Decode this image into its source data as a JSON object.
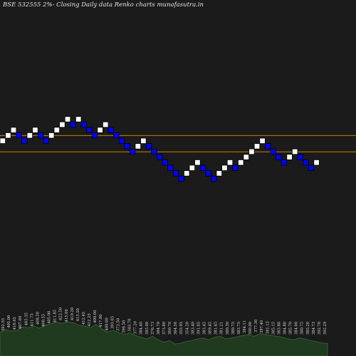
{
  "title": "BSE 532555 2%-  Closing Daily data  Renko  charts munafasutra.in",
  "colors": {
    "background": "#1b1b1b",
    "up_brick": "#ffffff",
    "down_brick": "#0000ff",
    "brick_border": "#000000",
    "hline": "#c98000",
    "volume_fill": "#1f3a1f",
    "volume_stroke": "#3b6a3b",
    "label": "#d8d8d8"
  },
  "chart_data": {
    "type": "renko",
    "box_size_percent": 2,
    "brick_levels": [
      0,
      1,
      2,
      1,
      0,
      1,
      2,
      1,
      0,
      1,
      2,
      3,
      4,
      3,
      4,
      3,
      2,
      1,
      2,
      3,
      2,
      1,
      0,
      -1,
      -2,
      -1,
      0,
      -1,
      -2,
      -3,
      -4,
      -5,
      -6,
      -7,
      -6,
      -5,
      -4,
      -5,
      -6,
      -7,
      -6,
      -5,
      -4,
      -5,
      -4,
      -3,
      -2,
      -1,
      0,
      -1,
      -2,
      -3,
      -4,
      -3,
      -2,
      -3,
      -4,
      -5,
      -4
    ],
    "brick_directions": [
      "up",
      "up",
      "up",
      "down",
      "down",
      "up",
      "up",
      "down",
      "down",
      "up",
      "up",
      "up",
      "up",
      "down",
      "up",
      "down",
      "down",
      "down",
      "up",
      "up",
      "down",
      "down",
      "down",
      "down",
      "down",
      "up",
      "up",
      "down",
      "down",
      "down",
      "down",
      "down",
      "down",
      "down",
      "up",
      "up",
      "up",
      "down",
      "down",
      "down",
      "up",
      "up",
      "up",
      "down",
      "up",
      "up",
      "up",
      "up",
      "up",
      "down",
      "down",
      "down",
      "down",
      "up",
      "up",
      "down",
      "down",
      "down",
      "up"
    ],
    "horizontal_levels": [
      1,
      -2
    ],
    "price_labels": [
      "392.55",
      "405.00",
      "410.65",
      "407.60",
      "403.35",
      "411.75",
      "408.50",
      "400.55",
      "405.00",
      "411.85",
      "422.50",
      "415.00",
      "419.20",
      "413.50",
      "412.45",
      "412.25",
      "409.00",
      "417.80",
      "400.00",
      "393.05",
      "372.50",
      "396.50",
      "383.70",
      "377.20",
      "384.40",
      "393.00",
      "376.73",
      "384.70",
      "373.80",
      "360.70",
      "364.50",
      "355.95",
      "354.20",
      "383.40",
      "391.05",
      "383.45",
      "369.45",
      "381.45",
      "381.21",
      "380.30",
      "380.75",
      "383.75",
      "384.11",
      "390.00",
      "377.30",
      "397.40",
      "381.15",
      "385.15",
      "383.80",
      "384.80",
      "385.70",
      "384.00",
      "380.75",
      "385.20",
      "384.73",
      "392.70",
      "392.29"
    ],
    "volume": [
      0.55,
      0.62,
      0.58,
      0.6,
      0.68,
      0.66,
      0.7,
      0.65,
      0.72,
      0.75,
      0.8,
      0.76,
      0.8,
      0.78,
      0.72,
      0.7,
      0.66,
      0.74,
      0.64,
      0.56,
      0.6,
      0.55,
      0.5,
      0.54,
      0.48,
      0.44,
      0.4,
      0.46,
      0.38,
      0.32,
      0.36,
      0.28,
      0.3,
      0.34,
      0.36,
      0.4,
      0.42,
      0.38,
      0.44,
      0.46,
      0.4,
      0.42,
      0.45,
      0.48,
      0.5,
      0.46,
      0.52,
      0.5,
      0.48,
      0.46,
      0.44,
      0.4,
      0.38,
      0.42,
      0.4,
      0.36,
      0.34,
      0.3,
      0.3
    ]
  }
}
